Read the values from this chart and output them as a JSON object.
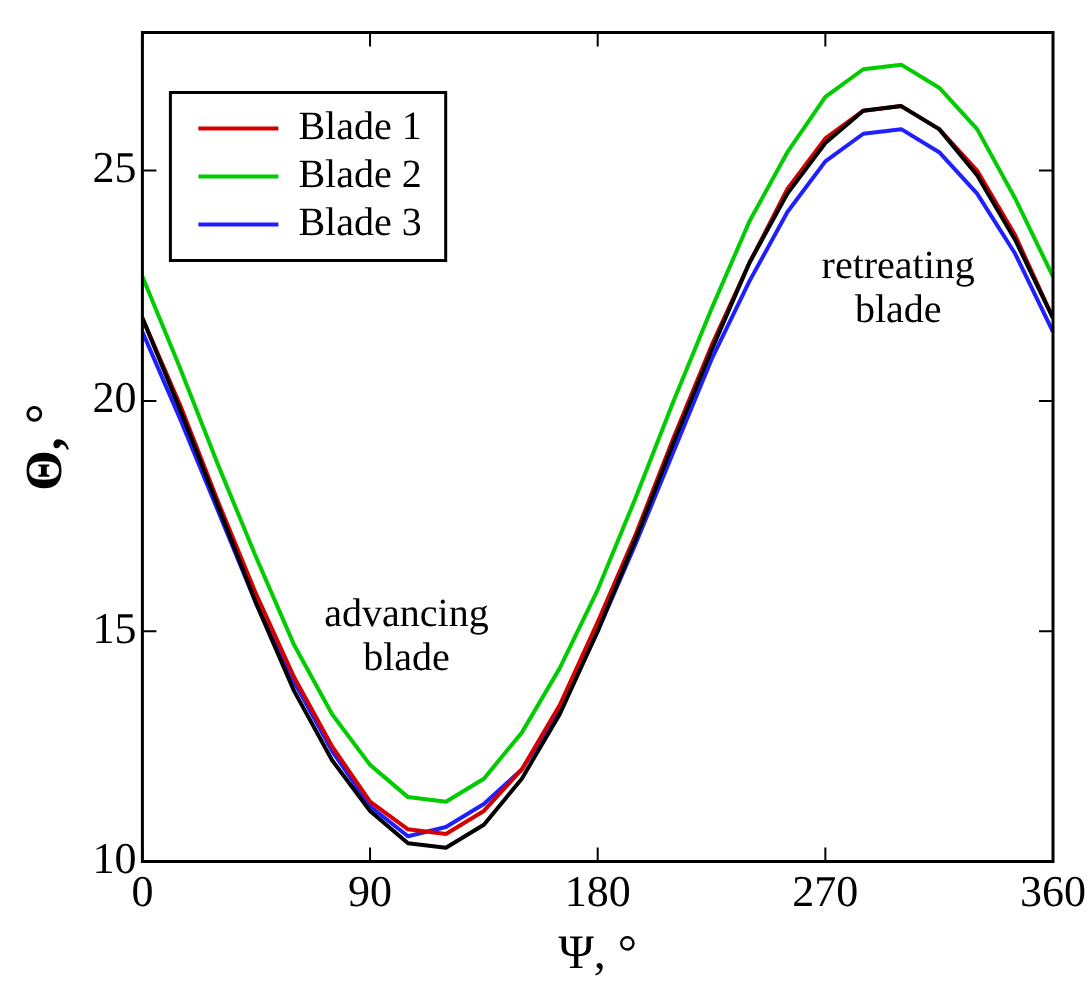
{
  "chart_data": {
    "type": "line",
    "xlabel": "Ψ, °",
    "ylabel": "Θ, °",
    "x": [
      0,
      15,
      30,
      45,
      60,
      75,
      90,
      105,
      120,
      135,
      150,
      165,
      180,
      195,
      210,
      225,
      240,
      255,
      270,
      285,
      300,
      315,
      330,
      345,
      360
    ],
    "series": [
      {
        "color": "#000000",
        "values": [
          21.8,
          19.8,
          17.7,
          15.6,
          13.7,
          12.2,
          11.1,
          10.4,
          10.3,
          10.8,
          11.8,
          13.2,
          15.0,
          17.0,
          19.1,
          21.1,
          23.0,
          24.5,
          25.6,
          26.3,
          26.4,
          25.9,
          24.9,
          23.5,
          21.8
        ]
      },
      {
        "name": "Blade 1",
        "color": "#d40000",
        "values": [
          21.8,
          19.9,
          17.8,
          15.8,
          14.0,
          12.5,
          11.3,
          10.7,
          10.6,
          11.1,
          12.0,
          13.4,
          15.2,
          17.1,
          19.2,
          21.2,
          23.0,
          24.6,
          25.7,
          26.3,
          26.4,
          25.9,
          25.0,
          23.6,
          21.8
        ]
      },
      {
        "name": "Blade 2",
        "color": "#00cc00",
        "values": [
          22.7,
          20.7,
          18.6,
          16.6,
          14.7,
          13.2,
          12.1,
          11.4,
          11.3,
          11.8,
          12.8,
          14.2,
          15.9,
          17.9,
          20.0,
          22.0,
          23.9,
          25.4,
          26.6,
          27.2,
          27.3,
          26.8,
          25.9,
          24.4,
          22.7
        ]
      },
      {
        "name": "Blade 3",
        "color": "#2020ff",
        "values": [
          21.5,
          19.6,
          17.6,
          15.6,
          13.9,
          12.4,
          11.2,
          10.55,
          10.75,
          11.25,
          12.0,
          13.3,
          15.0,
          16.9,
          18.9,
          20.9,
          22.6,
          24.1,
          25.2,
          25.8,
          25.9,
          25.4,
          24.5,
          23.2,
          21.5
        ]
      }
    ],
    "xlim": [
      0,
      360
    ],
    "xticks": [
      0,
      90,
      180,
      270,
      360
    ],
    "ylim": [
      10,
      28
    ],
    "yticks": [
      10,
      15,
      20,
      25
    ],
    "grid": false,
    "legend": "top left",
    "marker": "none",
    "line_style": "solid",
    "annotations": [
      "advancing\nblade",
      "retreating\nblade"
    ]
  }
}
